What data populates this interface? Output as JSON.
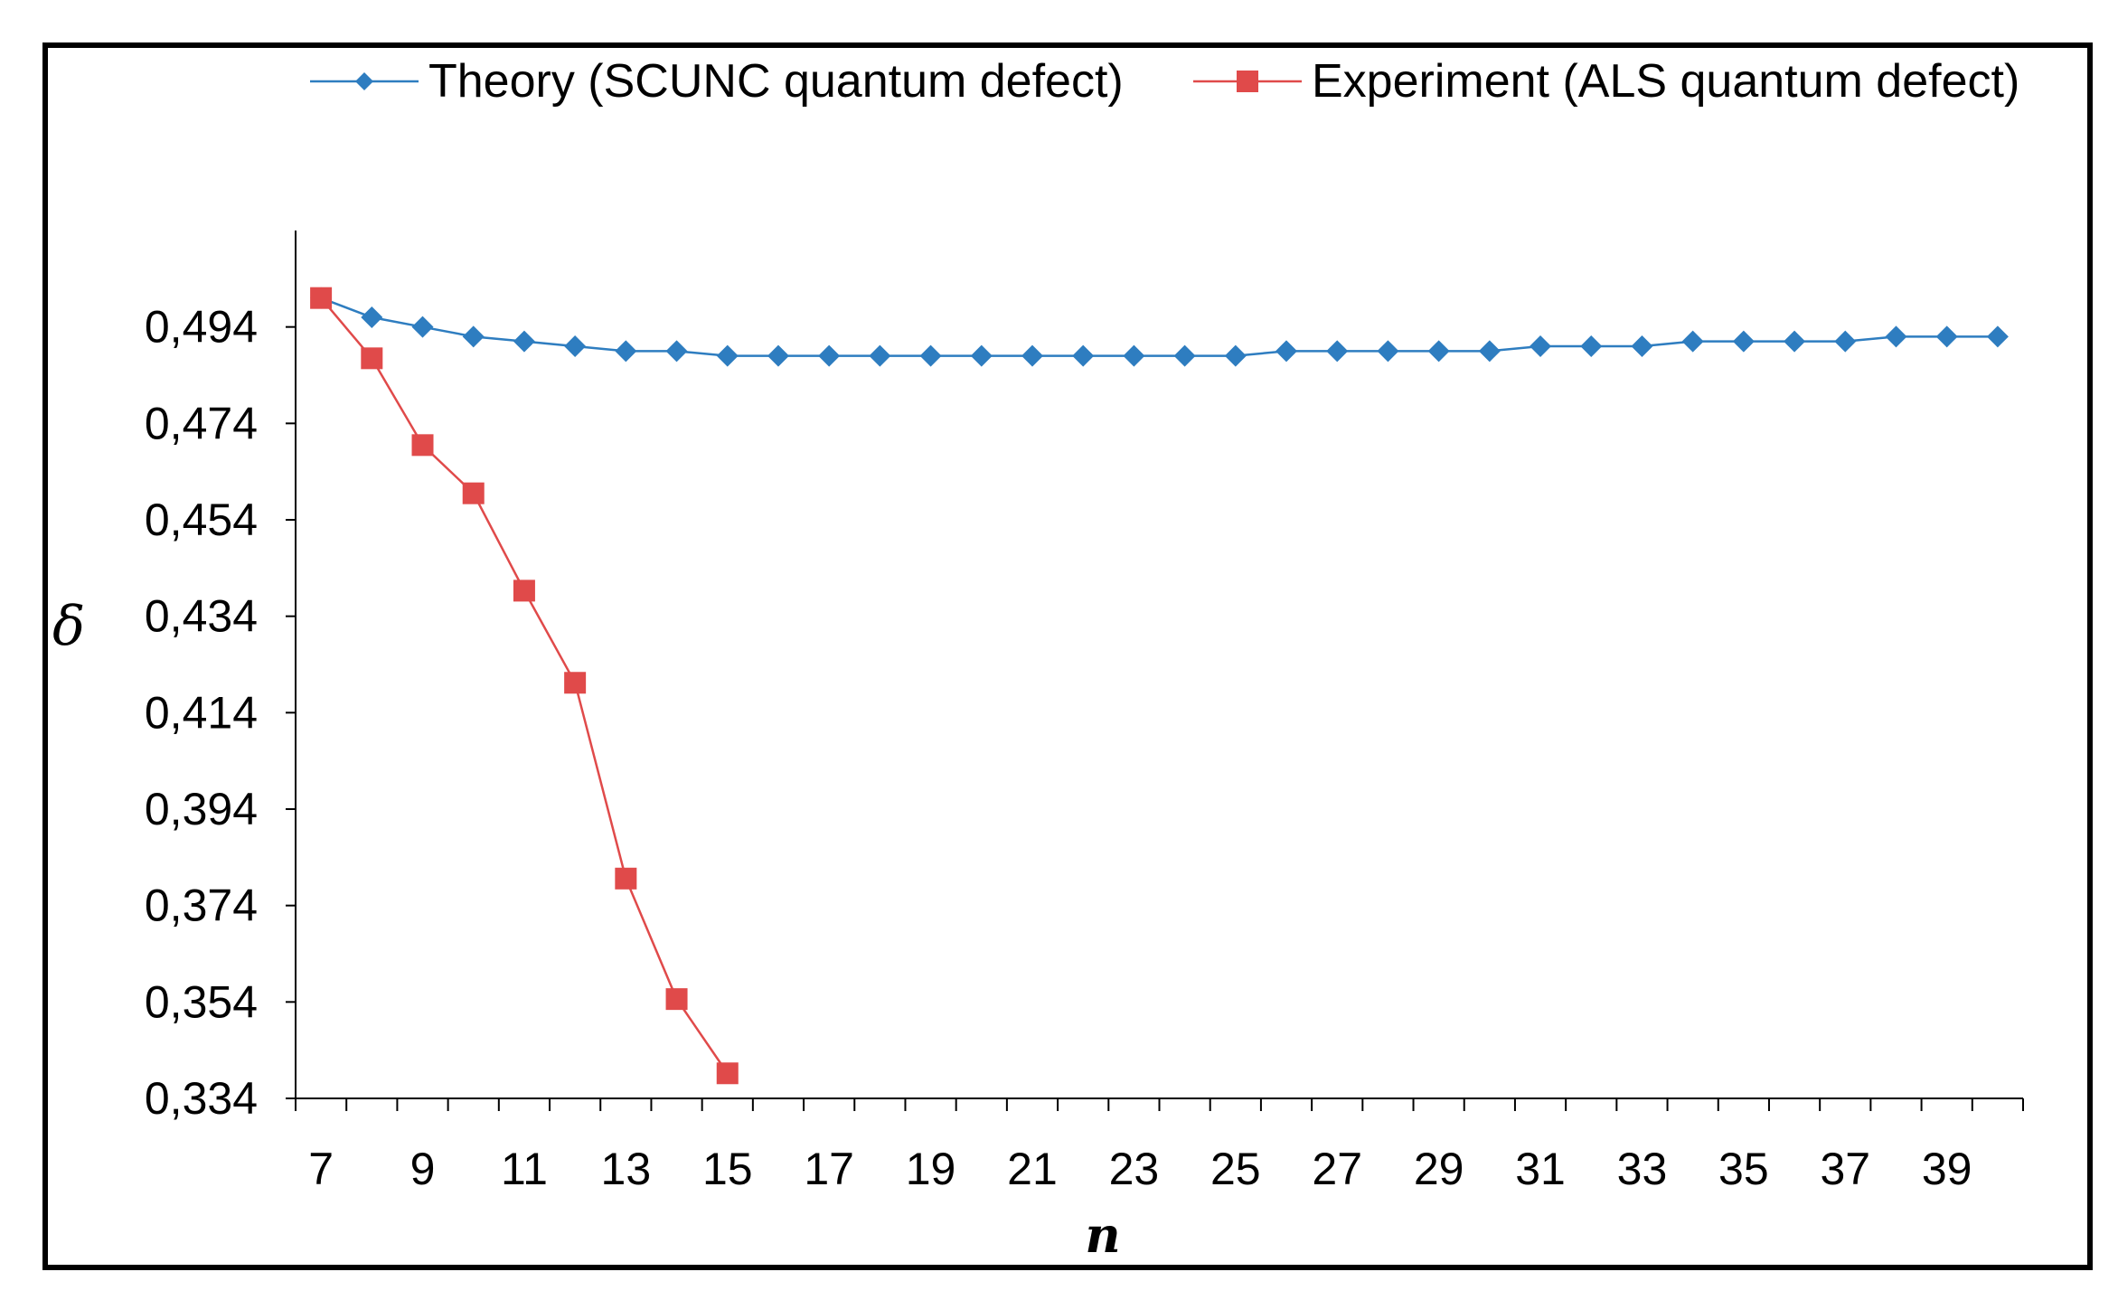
{
  "chart_data": {
    "type": "line",
    "title": "",
    "xlabel": "n",
    "ylabel": "δ",
    "xlim": [
      6.5,
      40.5
    ],
    "ylim": [
      0.334,
      0.514
    ],
    "x_ticks": [
      "7",
      "9",
      "11",
      "13",
      "15",
      "17",
      "19",
      "21",
      "23",
      "25",
      "27",
      "29",
      "31",
      "33",
      "35",
      "37",
      "39"
    ],
    "y_ticks": [
      "0,334",
      "0,354",
      "0,374",
      "0,394",
      "0,414",
      "0,434",
      "0,454",
      "0,474",
      "0,494"
    ],
    "legend_position": "top",
    "series": [
      {
        "name": "Theory (SCUNC quantum defect)",
        "color": "#2e7dc0",
        "marker": "diamond",
        "x": [
          7,
          8,
          9,
          10,
          11,
          12,
          13,
          14,
          15,
          16,
          17,
          18,
          19,
          20,
          21,
          22,
          23,
          24,
          25,
          26,
          27,
          28,
          29,
          30,
          31,
          32,
          33,
          34,
          35,
          36,
          37,
          38,
          39,
          40
        ],
        "values": [
          0.5,
          0.496,
          0.494,
          0.492,
          0.491,
          0.49,
          0.489,
          0.489,
          0.488,
          0.488,
          0.488,
          0.488,
          0.488,
          0.488,
          0.488,
          0.488,
          0.488,
          0.488,
          0.488,
          0.489,
          0.489,
          0.489,
          0.489,
          0.489,
          0.49,
          0.49,
          0.49,
          0.491,
          0.491,
          0.491,
          0.491,
          0.492,
          0.492,
          0.492
        ]
      },
      {
        "name": "Experiment (ALS quantum defect)",
        "color": "#e04a4a",
        "marker": "square",
        "x": [
          7,
          8,
          9,
          10,
          11,
          12,
          13,
          14,
          15
        ],
        "values": [
          0.5,
          0.4875,
          0.4695,
          0.4595,
          0.4393,
          0.4202,
          0.3796,
          0.3546,
          0.3392
        ]
      }
    ]
  }
}
